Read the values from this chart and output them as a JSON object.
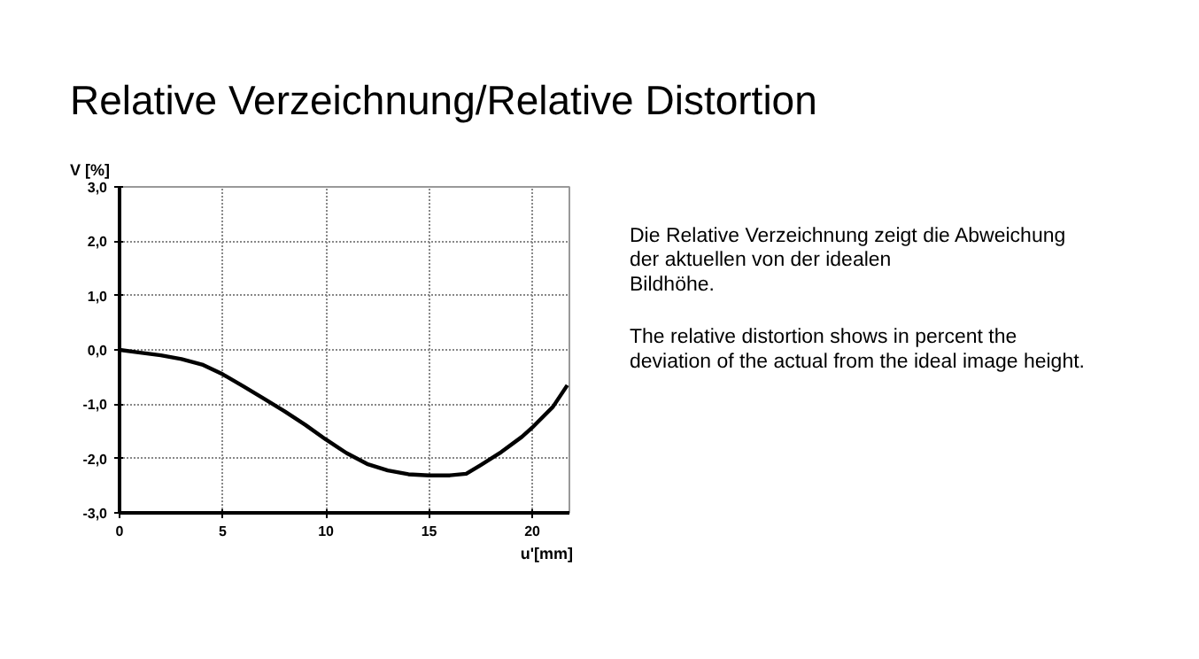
{
  "chart_data": {
    "type": "line",
    "title": "Relative Verzeichnung/Relative Distortion",
    "xlabel": "u'[mm]",
    "ylabel": "V [%]",
    "x": [
      0,
      1,
      2,
      3,
      4,
      5,
      6,
      7,
      8,
      9,
      10,
      11,
      12,
      13,
      14,
      15,
      16,
      16.8,
      17.5,
      18.5,
      19.5,
      20,
      21,
      21.7
    ],
    "series": [
      {
        "color": "#000000",
        "values": [
          0,
          -0.05,
          -0.1,
          -0.17,
          -0.27,
          -0.45,
          -0.67,
          -0.9,
          -1.13,
          -1.38,
          -1.65,
          -1.9,
          -2.1,
          -2.22,
          -2.29,
          -2.31,
          -2.31,
          -2.28,
          -2.12,
          -1.88,
          -1.6,
          -1.43,
          -1.05,
          -0.65
        ]
      }
    ],
    "xlim": [
      0,
      21.8
    ],
    "ylim": [
      -3,
      3
    ],
    "xticks": [
      0,
      5,
      10,
      15,
      20
    ],
    "yticks": [
      {
        "value": -3,
        "label": "-3,0"
      },
      {
        "value": -2,
        "label": "-2,0"
      },
      {
        "value": -1,
        "label": "-1,0"
      },
      {
        "value": 0,
        "label": "0,0"
      },
      {
        "value": 1,
        "label": "1,0"
      },
      {
        "value": 2,
        "label": "2,0"
      },
      {
        "value": 3,
        "label": "3,0"
      }
    ],
    "grid": true,
    "marker": "none",
    "line_style": "solid",
    "annotations": [
      "Die Relative Verzeichnung zeigt die Abweichung\nder aktuellen von der idealen\nBildhöhe.",
      "The relative distortion shows in percent the\ndeviation of the actual from the ideal image height."
    ]
  }
}
